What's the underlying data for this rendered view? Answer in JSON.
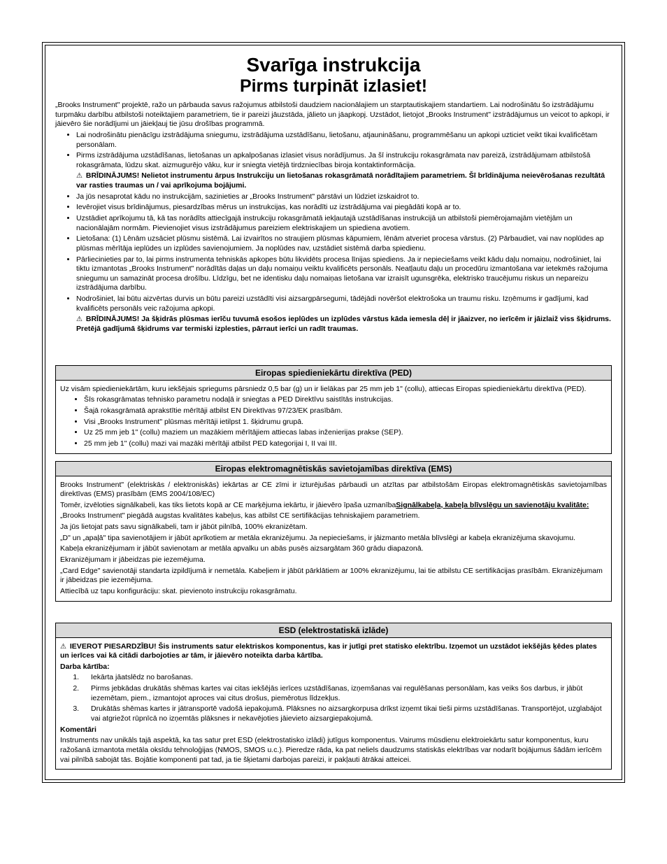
{
  "title": "Svarīga instrukcija",
  "subtitle": "Pirms turpināt izlasiet!",
  "intro": "„Brooks Instrument\" projektē, ražo un pārbauda savus ražojumus atbilstoši daudziem nacionālajiem un starptautiskajiem standartiem. Lai nodrošinātu šo izstrādājumu turpmāku darbību atbilstoši noteiktajiem parametriem, tie ir pareizi jāuzstāda, jālieto un jāapkopj. Uzstādot, lietojot „Brooks Instrument\" izstrādājumus un veicot to apkopi, ir jāievēro šie norādījumi un jāiekļauj tie jūsu drošības programmā.",
  "mainBullets": [
    {
      "text": "Lai nodrošinātu pienācīgu izstrādājuma sniegumu, izstrādājuma uzstādīšanu, lietošanu, atjaunināšanu, programmēšanu un apkopi uzticiet veikt tikai kvalificētam personālam."
    },
    {
      "text": "Pirms izstrādājuma uzstādīšanas, lietošanas un apkalpošanas izlasiet visus norādījumus. Ja šī instrukciju rokasgrāmata nav pareizā, izstrādājumam atbilstošā rokasgrāmata, lūdzu skat. aizmugurējo vāku, kur ir sniegta vietējā tirdzniecības biroja kontaktinformācija.",
      "warn": "BRĪDINĀJUMS! Nelietot instrumentu ārpus Instrukciju un lietošanas rokasgrāmatā norādītajiem parametriem. Šī brīdinājuma neievērošanas rezultātā var rasties traumas un / vai aprīkojuma bojājumi."
    },
    {
      "text": "Ja jūs nesaprotat kādu no instrukcijām, sazinieties ar „Brooks Instrument\" pārstāvi un lūdziet izskaidrot to."
    },
    {
      "text": "Ievērojiet visus brīdinājumus, piesardzības mērus un instrukcijas, kas norādīti uz izstrādājuma vai piegādāti kopā ar to."
    },
    {
      "text": "Uzstādiet aprīkojumu tā, kā tas norādīts attiecīgajā instrukciju rokasgrāmatā iekļautajā uzstādīšanas instrukcijā un atbilstoši piemērojamajām vietējām un nacionālajām normām. Pievienojiet visus izstrādājumus pareiziem elektriskajiem un spiediena avotiem."
    },
    {
      "text": "Lietošana: (1) Lēnām uzsāciet plūsmu sistēmā. Lai izvairītos no straujiem plūsmas kāpumiem, lēnām atveriet procesa vārstus. (2) Pārbaudiet, vai nav noplūdes ap plūsmas mērītāja ieplūdes un izplūdes savienojumiem. Ja noplūdes nav, uzstādiet sistēmā darba spiedienu."
    },
    {
      "text": "Pārliecinieties par to, lai pirms instrumenta tehniskās apkopes būtu likvidēts procesa līnijas spiediens. Ja ir nepieciešams veikt kādu daļu nomaiņu, nodrošiniet, lai tiktu izmantotas „Brooks Instrument\" norādītās daļas un daļu nomaiņu veiktu kvalificēts personāls. Neatļautu daļu un procedūru izmantošana var ietekmēs ražojuma sniegumu un samazināt procesa drošību. Līdzīgu, bet ne identisku daļu nomaiņas lietošana var izraisīt ugunsgrēka, elektrisko traucējumu riskus un nepareizu izstrādājuma darbību."
    },
    {
      "text": "Nodrošiniet, lai būtu aizvērtas durvis un būtu pareizi uzstādīti visi aizsargpārsegumi, tādējādi novēršot elektrošoka un traumu risku. Izņēmums ir gadījumi, kad kvalificēts personāls veic ražojuma apkopi.",
      "warn": "BRĪDINĀJUMS! Ja šķidrās plūsmas ierīču tuvumā esošos ieplūdes un izplūdes vārstus kāda iemesla dēļ ir jāaizver, no ierīcēm ir jāizlaiž viss šķidrums. Pretējā gadījumā šķidrums var termiski izplesties, pārraut ierīci un radīt traumas."
    }
  ],
  "ped": {
    "header": "Eiropas spiedieniekārtu direktīva (PED)",
    "intro": "Uz visām spiedieniekārtām, kuru iekšējais spriegums pārsniedz 0,5 bar (g) un ir lielākas par 25 mm jeb 1\" (collu), attiecas Eiropas spiedieniekārtu direktīva (PED).",
    "bullets": [
      "Šīs rokasgrāmatas tehnisko parametru nodaļā ir sniegtas a PED Direktīvu saistītās instrukcijas.",
      "Šajā rokasgrāmatā aprakstītie mērītāji atbilst EN Direktīvas 97/23/EK prasībām.",
      "Visi „Brooks Instrument\" plūsmas mērītāji ietilpst 1. šķidrumu grupā.",
      "Uz 25 mm jeb 1\" (collu) maziem un mazākiem mērītājiem attiecas labas inženierijas prakse (SEP).",
      "25 mm jeb 1\" (collu) mazi vai mazāki mērītāji atbilst PED kategorijai I, II vai III."
    ]
  },
  "emc": {
    "header": "Eiropas elektromagnētiskās savietojamības direktīva (EMS)",
    "p1": "Brooks Instrument\" (elektriskās / elektroniskās) iekārtas ar CE zīmi ir izturējušas pārbaudi un atzītas par atbilstošām Eiropas elektromagnētiskās savietojamības direktīvas (EMS) prasībām (EMS 2004/108/EC)",
    "p2_prefix": " Tomēr, izvēloties signālkabeli, kas tiks lietots kopā ar CE marķējuma iekārtu, ir jāievēro īpaša uzmanība",
    "p2_bold": "Signālkabeļa, kabeļa blīvslēgu un savienotāju kvalitāte:",
    "p3": "„Brooks Instrument\" piegādā augstas kvalitātes kabeļus, kas atbilst CE sertifikācijas tehniskajiem parametriem.",
    "p4": "Ja jūs lietojat pats savu signālkabeli, tam ir jābūt pilnībā, 100% ekranizētam.",
    "p5": "„D\" un „apaļā\" tipa savienotājiem ir jābūt aprīkotiem ar metāla ekranizējumu. Ja nepieciešams, ir jāizmanto metāla blīvslēgi ar kabeļa ekranizējuma skavojumu.",
    "p6": "Kabeļa ekranizējumam ir jābūt savienotam ar metāla apvalku un abās pusēs aizsargātam 360 grādu diapazonā.",
    "p7": "Ekranizējumam ir jābeidzas pie iezemējuma.",
    "p8": "„Card Edge\" savienotāji standarta izpildījumā ir nemetāla. Kabeļiem ir jābūt pārklātiem ar 100% ekranizējumu, lai tie atbilstu CE sertifikācijas prasībām. Ekranizējumam ir jābeidzas pie iezemējuma.",
    "p9": " Attiecībā uz tapu konfigurāciju: skat. pievienoto instrukciju rokasgrāmatu."
  },
  "esd": {
    "header": "ESD (elektrostatiskā izlāde)",
    "warnLabel": "IEVEROT PIESARDZĪBU!",
    "warnText": "Šis instruments satur elektriskos komponentus, kas ir jutīgi pret statisko elektrību. Izņemot un uzstādot iekšējās ķēdes plates un ierīces vai kā citādi darbojoties ar tām, ir jāievēro noteikta darba kārtība.",
    "workOrderLabel": "Darba kārtība:",
    "steps": [
      "Iekārta jāatslēdz no barošanas.",
      "Pirms jebkādas drukātās shēmas kartes vai citas iekšējās ierīces uzstādīšanas, izņemšanas vai regulēšanas personālam, kas veiks šos darbus, ir jābūt iezemētam, piem., izmantojot aproces vai citus drošus, piemērotus līdzekļus.",
      "Drukātās shēmas kartes ir jātransportē vadošā iepakojumā. Plāksnes no aizsargkorpusa drīkst izņemt tikai tieši pirms uzstādīšanas. Transportējot, uzglabājot vai atgriežot rūpnīcā no izņemtās plāksnes ir nekavējoties jāievieto aizsargiepakojumā."
    ],
    "commentsLabel": "Komentāri",
    "comments": "Instruments nav unikāls tajā aspektā, ka tas satur pret ESD (elektrostatisko izlādi) jutīgus komponentus. Vairums mūsdienu elektroiekārtu satur komponentus, kuru ražošanā izmantota metāla oksīdu tehnoloģijas (NMOS, SMOS u.c.). Pieredze rāda, ka pat neliels daudzums statiskās elektrības var nodarīt bojājumus šādām ierīcēm vai pilnībā sabojāt tās. Bojātie komponenti pat tad, ja tie šķietami darbojas pareizi, ir pakļauti ātrākai atteicei."
  }
}
